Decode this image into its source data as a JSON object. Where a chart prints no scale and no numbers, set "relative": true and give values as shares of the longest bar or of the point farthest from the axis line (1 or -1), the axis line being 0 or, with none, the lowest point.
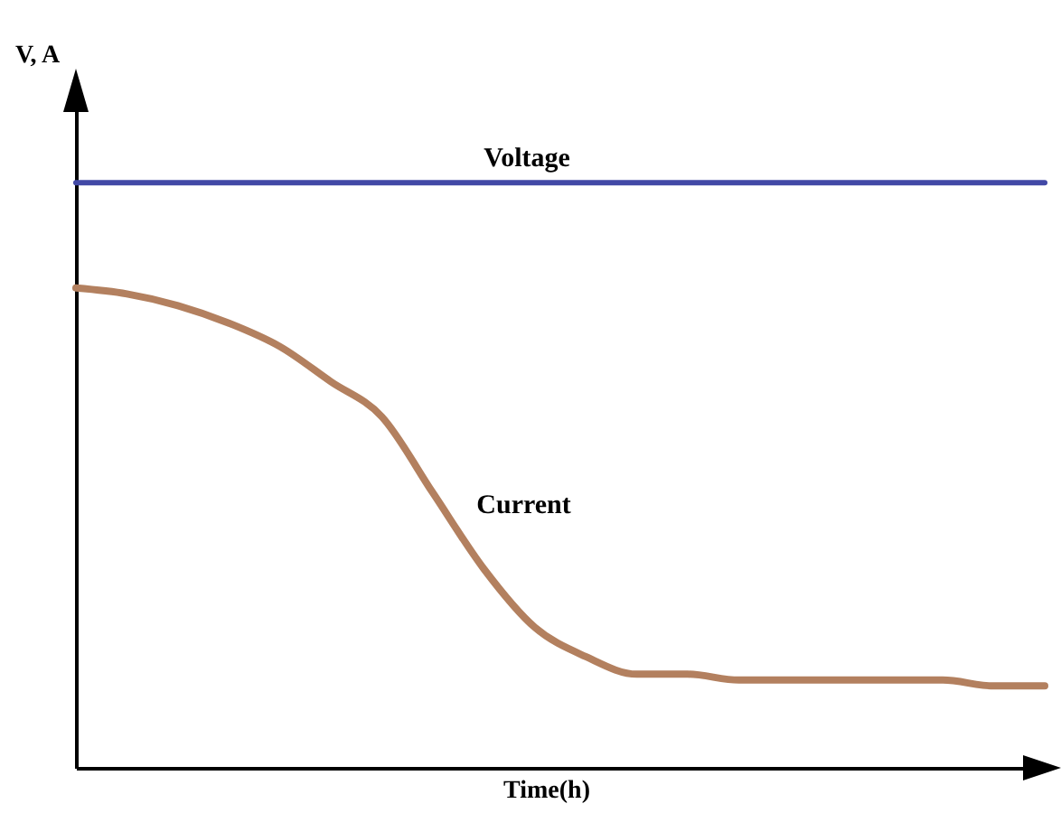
{
  "chart_data": {
    "type": "line",
    "relative": true,
    "xlabel": "Time(h)",
    "ylabel": "V, A",
    "categories": [
      null,
      null,
      null,
      null,
      null,
      null,
      null,
      null,
      null,
      null,
      null,
      null,
      null,
      null,
      null,
      null,
      null,
      null,
      null,
      null
    ],
    "series": [
      {
        "name": "Voltage",
        "color": "#4249a6",
        "values": [
          1,
          1,
          1,
          1,
          1,
          1,
          1,
          1,
          1,
          1,
          1,
          1,
          1,
          1,
          1,
          1,
          1,
          1,
          1,
          1
        ]
      },
      {
        "name": "Current",
        "color": "#b3805f",
        "values": [
          0.82,
          0.81,
          0.79,
          0.76,
          0.72,
          0.66,
          0.6,
          0.47,
          0.34,
          0.24,
          0.19,
          0.16,
          0.16,
          0.15,
          0.15,
          0.15,
          0.15,
          0.15,
          0.14,
          0.14
        ]
      }
    ]
  }
}
